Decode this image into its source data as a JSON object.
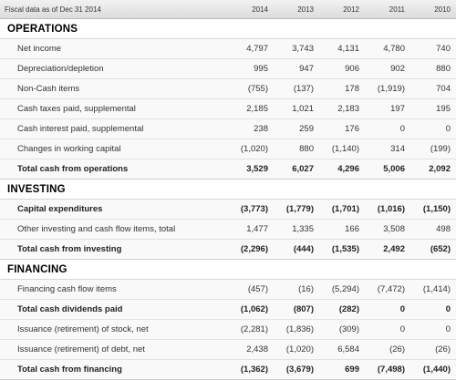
{
  "header": {
    "title": "Fiscal data as of Dec 31 2014",
    "years": [
      "2014",
      "2013",
      "2012",
      "2011",
      "2010"
    ]
  },
  "sections": [
    {
      "title": "OPERATIONS",
      "rows": [
        {
          "label": "Net income",
          "values": [
            "4,797",
            "3,743",
            "4,131",
            "4,780",
            "740"
          ],
          "total": false
        },
        {
          "label": "Depreciation/depletion",
          "values": [
            "995",
            "947",
            "906",
            "902",
            "880"
          ],
          "total": false
        },
        {
          "label": "Non-Cash items",
          "values": [
            "(755)",
            "(137)",
            "178",
            "(1,919)",
            "704"
          ],
          "total": false
        },
        {
          "label": "Cash taxes paid, supplemental",
          "values": [
            "2,185",
            "1,021",
            "2,183",
            "197",
            "195"
          ],
          "total": false
        },
        {
          "label": "Cash interest paid, supplemental",
          "values": [
            "238",
            "259",
            "176",
            "0",
            "0"
          ],
          "total": false
        },
        {
          "label": "Changes in working capital",
          "values": [
            "(1,020)",
            "880",
            "(1,140)",
            "314",
            "(199)"
          ],
          "total": false
        },
        {
          "label": "Total cash from operations",
          "values": [
            "3,529",
            "6,027",
            "4,296",
            "5,006",
            "2,092"
          ],
          "total": true
        }
      ]
    },
    {
      "title": "INVESTING",
      "rows": [
        {
          "label": "Capital expenditures",
          "values": [
            "(3,773)",
            "(1,779)",
            "(1,701)",
            "(1,016)",
            "(1,150)"
          ],
          "total": true
        },
        {
          "label": "Other investing and cash flow items, total",
          "values": [
            "1,477",
            "1,335",
            "166",
            "3,508",
            "498"
          ],
          "total": false
        },
        {
          "label": "Total cash from investing",
          "values": [
            "(2,296)",
            "(444)",
            "(1,535)",
            "2,492",
            "(652)"
          ],
          "total": true
        }
      ]
    },
    {
      "title": "FINANCING",
      "rows": [
        {
          "label": "Financing cash flow items",
          "values": [
            "(457)",
            "(16)",
            "(5,294)",
            "(7,472)",
            "(1,414)"
          ],
          "total": false
        },
        {
          "label": "Total cash dividends paid",
          "values": [
            "(1,062)",
            "(807)",
            "(282)",
            "0",
            "0"
          ],
          "total": true
        },
        {
          "label": "Issuance (retirement) of stock, net",
          "values": [
            "(2,281)",
            "(1,836)",
            "(309)",
            "0",
            "0"
          ],
          "total": false
        },
        {
          "label": "Issuance (retirement) of debt, net",
          "values": [
            "2,438",
            "(1,020)",
            "6,584",
            "(26)",
            "(26)"
          ],
          "total": false
        },
        {
          "label": "Total cash from financing",
          "values": [
            "(1,362)",
            "(3,679)",
            "699",
            "(7,498)",
            "(1,440)"
          ],
          "total": true
        }
      ]
    }
  ]
}
